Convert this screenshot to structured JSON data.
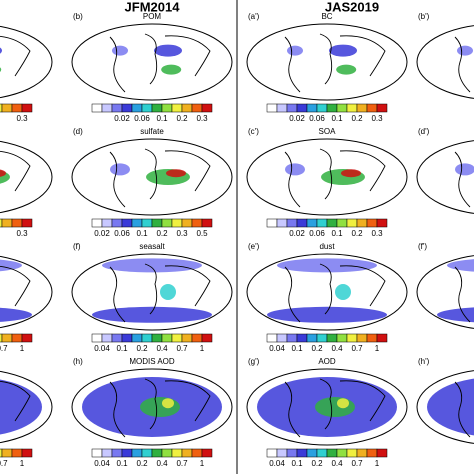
{
  "headers": {
    "left": "JFM2014",
    "right": "JAS2019"
  },
  "rows": [
    [
      {
        "colorbar": [
          "0.3"
        ]
      },
      {
        "label": "(b)",
        "title": "POM",
        "colorbar": [
          "0.02",
          "0.06",
          "0.1",
          "0.2",
          "0.3"
        ]
      },
      {
        "label": "(a')",
        "title": "BC",
        "colorbar": [
          "0.02",
          "0.06",
          "0.1",
          "0.2",
          "0.3"
        ]
      },
      {
        "label": "(b')"
      }
    ],
    [
      {
        "colorbar": [
          "0.3"
        ]
      },
      {
        "label": "(d)",
        "title": "sulfate",
        "colorbar": [
          "0.02",
          "0.06",
          "0.1",
          "0.2",
          "0.3",
          "0.5"
        ]
      },
      {
        "label": "(c')",
        "title": "SOA",
        "colorbar": [
          "0.02",
          "0.06",
          "0.1",
          "0.2",
          "0.3"
        ]
      },
      {
        "label": "(d')"
      }
    ],
    [
      {
        "colorbar": [
          "0.7",
          "1"
        ]
      },
      {
        "label": "(f)",
        "title": "seasalt",
        "colorbar": [
          "0.04",
          "0.1",
          "0.2",
          "0.4",
          "0.7",
          "1"
        ]
      },
      {
        "label": "(e')",
        "title": "dust",
        "colorbar": [
          "0.04",
          "0.1",
          "0.2",
          "0.4",
          "0.7",
          "1"
        ]
      },
      {
        "label": "(f')"
      }
    ],
    [
      {
        "colorbar": [
          "0.7",
          "1"
        ]
      },
      {
        "label": "(h)",
        "title": "MODIS AOD",
        "colorbar": [
          "0.04",
          "0.1",
          "0.2",
          "0.4",
          "0.7",
          "1"
        ]
      },
      {
        "label": "(g')",
        "title": "AOD",
        "colorbar": [
          "0.04",
          "0.1",
          "0.2",
          "0.4",
          "0.7",
          "1"
        ]
      },
      {
        "label": "(h')"
      }
    ]
  ]
}
